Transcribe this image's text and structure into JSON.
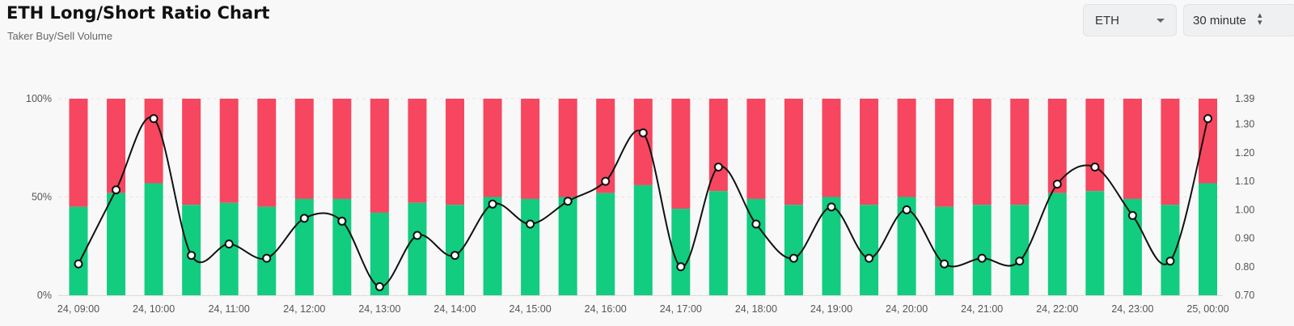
{
  "header": {
    "title": "ETH Long/Short Ratio Chart",
    "subtitle": "Taker Buy/Sell Volume"
  },
  "controls": {
    "asset": {
      "value": "ETH",
      "icon": "chevron-down-icon"
    },
    "interval": {
      "value": "30 minute",
      "icon": "up-down-arrows-icon"
    }
  },
  "colors": {
    "long": "#12cc80",
    "short": "#f7465f",
    "ratio_line": "#111111"
  },
  "chart_data": {
    "type": "bar",
    "title": "",
    "xlabel": "",
    "ylabel": "",
    "x_tick_labels": [
      "24, 09:00",
      "24, 10:00",
      "24, 11:00",
      "24, 12:00",
      "24, 13:00",
      "24, 14:00",
      "24, 15:00",
      "24, 16:00",
      "24, 17:00",
      "24, 18:00",
      "24, 19:00",
      "24, 20:00",
      "24, 21:00",
      "24, 22:00",
      "24, 23:00",
      "25, 00:00"
    ],
    "categories": [
      "24, 09:00",
      "24, 09:30",
      "24, 10:00",
      "24, 10:30",
      "24, 11:00",
      "24, 11:30",
      "24, 12:00",
      "24, 12:30",
      "24, 13:00",
      "24, 13:30",
      "24, 14:00",
      "24, 14:30",
      "24, 15:00",
      "24, 15:30",
      "24, 16:00",
      "24, 16:30",
      "24, 17:00",
      "24, 17:30",
      "24, 18:00",
      "24, 18:30",
      "24, 19:00",
      "24, 19:30",
      "24, 20:00",
      "24, 20:30",
      "24, 21:00",
      "24, 21:30",
      "24, 22:00",
      "24, 22:30",
      "24, 23:00",
      "24, 23:30",
      "25, 00:00"
    ],
    "y_left": {
      "ticks": [
        "0%",
        "50%",
        "100%"
      ],
      "range": [
        0,
        100
      ],
      "stacked": true
    },
    "y_right": {
      "ticks": [
        "0.70",
        "0.80",
        "0.90",
        "1.00",
        "1.10",
        "1.20",
        "1.30",
        "1.39"
      ],
      "range": [
        0.7,
        1.39
      ]
    },
    "grid": true,
    "series": [
      {
        "type": "bar",
        "stack": "volume",
        "values": [
          45,
          52,
          57,
          46,
          47,
          45,
          49,
          49,
          42,
          47,
          46,
          50,
          49,
          50,
          52,
          56,
          44,
          53,
          49,
          46,
          50,
          46,
          50,
          45,
          46,
          46,
          52,
          53,
          49,
          46,
          57
        ]
      },
      {
        "type": "bar",
        "stack": "volume",
        "values": [
          55,
          48,
          43,
          54,
          53,
          55,
          51,
          51,
          58,
          53,
          54,
          50,
          51,
          50,
          48,
          44,
          56,
          47,
          51,
          54,
          50,
          54,
          50,
          55,
          54,
          54,
          48,
          47,
          51,
          54,
          43
        ]
      },
      {
        "type": "line",
        "axis": "right",
        "values": [
          0.81,
          1.07,
          1.32,
          0.84,
          0.88,
          0.83,
          0.97,
          0.96,
          0.73,
          0.91,
          0.84,
          1.02,
          0.95,
          1.03,
          1.1,
          1.27,
          0.8,
          1.15,
          0.95,
          0.83,
          1.01,
          0.83,
          1.0,
          0.81,
          0.83,
          0.82,
          1.09,
          1.15,
          0.98,
          0.82,
          1.32
        ]
      }
    ]
  }
}
